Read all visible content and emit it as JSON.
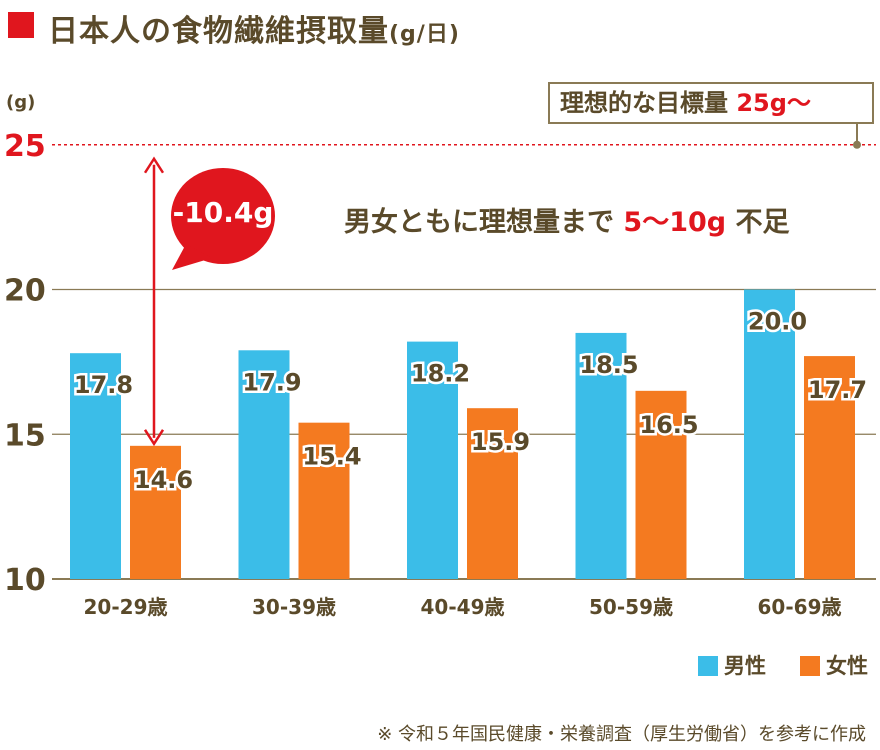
{
  "header": {
    "title": "日本人の食物繊維摂取量",
    "unit": "(g/日)"
  },
  "target": {
    "label": "理想的な目標量",
    "value": "25g〜"
  },
  "message": {
    "prefix": "男女ともに理想量まで",
    "highlight": "5〜10g",
    "suffix": "不足"
  },
  "callout": {
    "text": "-10.4g"
  },
  "legend": {
    "male": "男性",
    "female": "女性"
  },
  "footnote": "※ 令和５年国民健康・栄養調査（厚生労働省）を参考に作成",
  "colors": {
    "male": "#3bbde8",
    "female": "#f47a20",
    "accent": "#e0161e",
    "grid": "#8a7a55",
    "text": "#5a4a2a"
  },
  "chart_data": {
    "type": "bar",
    "categories": [
      "20-29歳",
      "30-39歳",
      "40-49歳",
      "50-59歳",
      "60-69歳"
    ],
    "series": [
      {
        "name": "男性",
        "values": [
          17.8,
          17.9,
          18.2,
          18.5,
          20.0
        ],
        "labels": [
          "17.8",
          "17.9",
          "18.2",
          "18.5",
          "20.0"
        ]
      },
      {
        "name": "女性",
        "values": [
          14.6,
          15.4,
          15.9,
          16.5,
          17.7
        ],
        "labels": [
          "14.6",
          "15.4",
          "15.9",
          "16.5",
          "17.7"
        ]
      }
    ],
    "ylabel": "(g)",
    "ylim": [
      10,
      25
    ],
    "yticks": [
      {
        "value": 10,
        "label": "10"
      },
      {
        "value": 15,
        "label": "15"
      },
      {
        "value": 20,
        "label": "20"
      },
      {
        "value": 25,
        "label": "25"
      }
    ],
    "reference_line": {
      "value": 25
    },
    "annotation": {
      "value_from": 14.6,
      "value_to": 25
    },
    "grid": true,
    "legend_position": "bottom-right"
  }
}
